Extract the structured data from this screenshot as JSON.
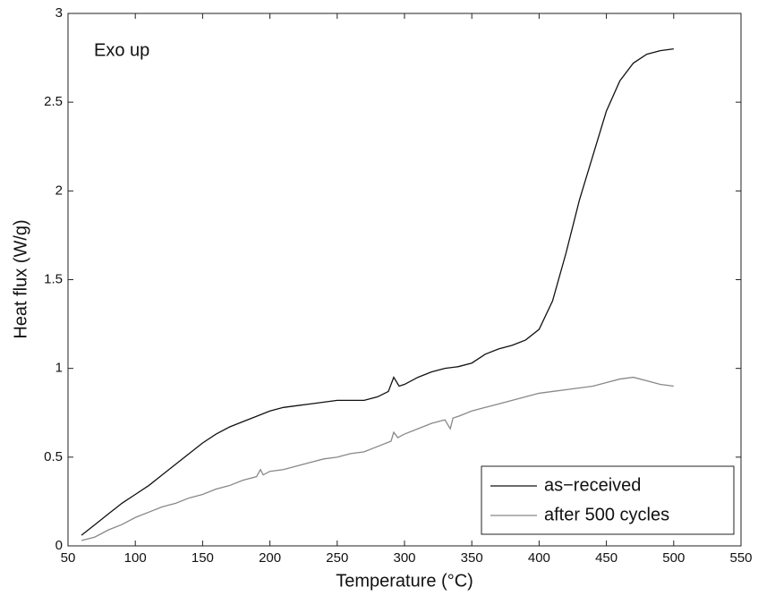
{
  "chart_data": {
    "type": "line",
    "annotation": "Exo up",
    "xlabel": "Temperature (°C)",
    "ylabel": "Heat flux (W/g)",
    "xlim": [
      50,
      550
    ],
    "ylim": [
      0,
      3
    ],
    "xticks": [
      50,
      100,
      150,
      200,
      250,
      300,
      350,
      400,
      450,
      500,
      550
    ],
    "yticks": [
      0,
      0.5,
      1,
      1.5,
      2,
      2.5,
      3
    ],
    "legend": "lower right",
    "series": [
      {
        "name": "as−received",
        "color": "#111111",
        "x": [
          60,
          70,
          80,
          90,
          100,
          110,
          120,
          130,
          140,
          150,
          160,
          170,
          180,
          190,
          200,
          210,
          220,
          230,
          240,
          250,
          260,
          270,
          280,
          288,
          292,
          296,
          300,
          310,
          320,
          330,
          340,
          350,
          360,
          370,
          380,
          390,
          400,
          410,
          420,
          430,
          440,
          450,
          460,
          470,
          480,
          490,
          500
        ],
        "values": [
          0.06,
          0.12,
          0.18,
          0.24,
          0.29,
          0.34,
          0.4,
          0.46,
          0.52,
          0.58,
          0.63,
          0.67,
          0.7,
          0.73,
          0.76,
          0.78,
          0.79,
          0.8,
          0.81,
          0.82,
          0.82,
          0.82,
          0.84,
          0.87,
          0.95,
          0.9,
          0.91,
          0.95,
          0.98,
          1.0,
          1.01,
          1.03,
          1.08,
          1.11,
          1.13,
          1.16,
          1.22,
          1.38,
          1.65,
          1.95,
          2.2,
          2.45,
          2.62,
          2.72,
          2.77,
          2.79,
          2.8
        ]
      },
      {
        "name": "after 500 cycles",
        "color": "#888888",
        "x": [
          60,
          70,
          80,
          90,
          100,
          110,
          120,
          130,
          140,
          150,
          160,
          170,
          180,
          190,
          193,
          195,
          200,
          210,
          220,
          230,
          240,
          250,
          260,
          270,
          280,
          290,
          292,
          295,
          300,
          310,
          320,
          330,
          334,
          336,
          340,
          350,
          360,
          370,
          380,
          390,
          400,
          410,
          420,
          430,
          440,
          450,
          460,
          470,
          480,
          490,
          500
        ],
        "values": [
          0.03,
          0.05,
          0.09,
          0.12,
          0.16,
          0.19,
          0.22,
          0.24,
          0.27,
          0.29,
          0.32,
          0.34,
          0.37,
          0.39,
          0.43,
          0.4,
          0.42,
          0.43,
          0.45,
          0.47,
          0.49,
          0.5,
          0.52,
          0.53,
          0.56,
          0.59,
          0.64,
          0.61,
          0.63,
          0.66,
          0.69,
          0.71,
          0.66,
          0.72,
          0.73,
          0.76,
          0.78,
          0.8,
          0.82,
          0.84,
          0.86,
          0.87,
          0.88,
          0.89,
          0.9,
          0.92,
          0.94,
          0.95,
          0.93,
          0.91,
          0.9
        ]
      }
    ]
  }
}
